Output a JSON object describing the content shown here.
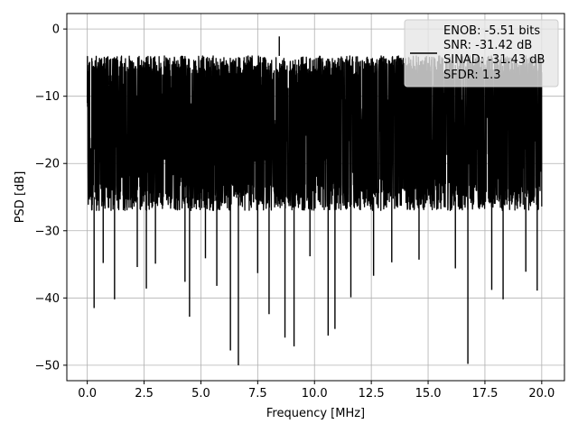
{
  "chart_data": {
    "type": "line",
    "title": "",
    "xlabel": "Frequency [MHz]",
    "ylabel": "PSD [dB]",
    "xlim": [
      -0.9,
      21.0
    ],
    "ylim": [
      -52.3,
      2.3
    ],
    "x_ticks": [
      0.0,
      2.5,
      5.0,
      7.5,
      10.0,
      12.5,
      15.0,
      17.5,
      20.0
    ],
    "x_tick_labels": [
      "0.0",
      "2.5",
      "5.0",
      "7.5",
      "10.0",
      "12.5",
      "15.0",
      "17.5",
      "20.0"
    ],
    "y_ticks": [
      0,
      -10,
      -20,
      -30,
      -40,
      -50
    ],
    "y_tick_labels": [
      "0",
      "−10",
      "−20",
      "−30",
      "−40",
      "−50"
    ],
    "grid": true,
    "legend": {
      "placement": "upper right",
      "line_color": "#000000",
      "lines": [
        "ENOB: -5.51 bits",
        "SNR: -31.42 dB",
        "SINAD: -31.43 dB",
        "SFDR: 1.3"
      ]
    },
    "series": [
      {
        "color": "#000000",
        "x_range": [
          0.0,
          20.0
        ],
        "typical_range_db": [
          -27,
          -4
        ],
        "max_db": -1.1,
        "max_at": 8.45,
        "deep_minima": [
          {
            "x": 0.3,
            "y": -41.5
          },
          {
            "x": 0.7,
            "y": -34.8
          },
          {
            "x": 1.2,
            "y": -40.2
          },
          {
            "x": 2.2,
            "y": -35.4
          },
          {
            "x": 2.6,
            "y": -38.6
          },
          {
            "x": 3.0,
            "y": -34.9
          },
          {
            "x": 4.3,
            "y": -37.6
          },
          {
            "x": 4.5,
            "y": -42.8
          },
          {
            "x": 5.2,
            "y": -34.1
          },
          {
            "x": 5.7,
            "y": -38.2
          },
          {
            "x": 6.3,
            "y": -47.8
          },
          {
            "x": 6.65,
            "y": -50.0
          },
          {
            "x": 7.5,
            "y": -36.3
          },
          {
            "x": 8.0,
            "y": -42.4
          },
          {
            "x": 8.7,
            "y": -45.9
          },
          {
            "x": 9.1,
            "y": -47.2
          },
          {
            "x": 9.8,
            "y": -33.8
          },
          {
            "x": 10.6,
            "y": -45.6
          },
          {
            "x": 10.9,
            "y": -44.6
          },
          {
            "x": 11.6,
            "y": -39.9
          },
          {
            "x": 12.6,
            "y": -36.7
          },
          {
            "x": 13.4,
            "y": -34.7
          },
          {
            "x": 14.6,
            "y": -34.3
          },
          {
            "x": 16.2,
            "y": -35.6
          },
          {
            "x": 16.75,
            "y": -49.8
          },
          {
            "x": 17.8,
            "y": -38.8
          },
          {
            "x": 18.3,
            "y": -40.2
          },
          {
            "x": 19.3,
            "y": -36.1
          },
          {
            "x": 19.8,
            "y": -38.9
          }
        ]
      }
    ]
  }
}
